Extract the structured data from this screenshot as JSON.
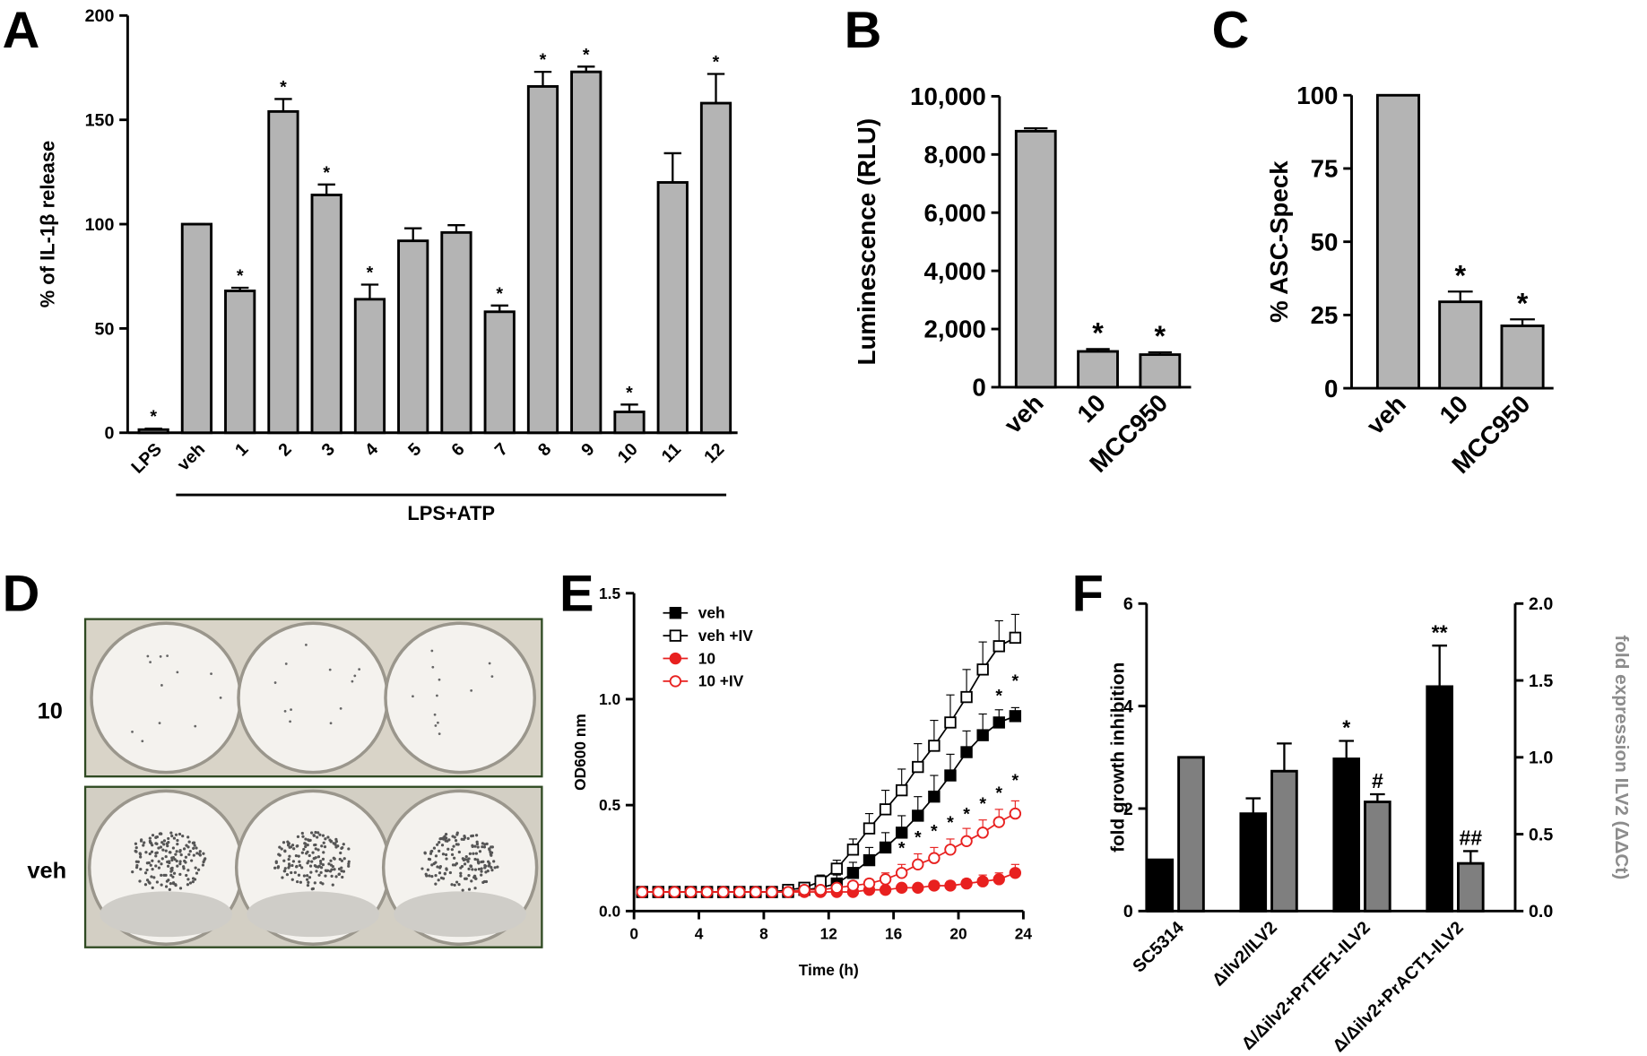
{
  "chart_data": [
    {
      "type": "bar",
      "panel_label": "A",
      "ylabel": "% of IL-1β release",
      "categories": [
        "LPS",
        "veh",
        "1",
        "2",
        "3",
        "4",
        "5",
        "6",
        "7",
        "8",
        "9",
        "10",
        "11",
        "12"
      ],
      "values": [
        1.5,
        100,
        68,
        154,
        114,
        64,
        92,
        96,
        58,
        166,
        173,
        10,
        120,
        158
      ],
      "errors": [
        0.5,
        0,
        1.5,
        6,
        5,
        7,
        6,
        3.5,
        3,
        7,
        2.5,
        3.5,
        14,
        14
      ],
      "significance": [
        "*",
        null,
        "*",
        "*",
        "*",
        "*",
        null,
        null,
        "*",
        "*",
        "*",
        "*",
        null,
        "*"
      ],
      "group_label": "LPS+ATP",
      "color": "#b4b4b4",
      "ylim": [
        0,
        200
      ],
      "yticks": [
        0,
        50,
        100,
        150,
        200
      ]
    },
    {
      "type": "bar",
      "panel_label": "B",
      "ylabel": "Luminescence (RLU)",
      "categories": [
        "veh",
        "10",
        "MCC950"
      ],
      "values": [
        8800,
        1230,
        1120
      ],
      "errors": [
        100,
        80,
        80
      ],
      "significance": [
        null,
        "*",
        "*"
      ],
      "color": "#b4b4b4",
      "ylim": [
        0,
        10000
      ],
      "yticks": [
        0,
        {
          "value": 2000,
          "label": "2,000"
        },
        {
          "value": 4000,
          "label": "4,000"
        },
        {
          "value": 6000,
          "label": "6,000"
        },
        {
          "value": 8000,
          "label": "8,000"
        },
        {
          "value": 10000,
          "label": "10,000"
        }
      ]
    },
    {
      "type": "bar",
      "panel_label": "C",
      "ylabel": "% ASC-Speck",
      "categories": [
        "veh",
        "10",
        "MCC950"
      ],
      "values": [
        100,
        29.5,
        21.3
      ],
      "errors": [
        0,
        3.5,
        2.2
      ],
      "significance": [
        null,
        "*",
        "*"
      ],
      "color": "#b4b4b4",
      "ylim": [
        0,
        100
      ],
      "yticks": [
        0,
        25,
        50,
        75,
        100
      ]
    },
    {
      "type": "line",
      "panel_label": "E",
      "xlabel": "Time (h)",
      "ylabel": "OD600 nm",
      "x": [
        0.5,
        1.5,
        2.5,
        3.5,
        4.5,
        5.5,
        6.5,
        7.5,
        8.5,
        9.5,
        10.5,
        11.5,
        12.5,
        13.5,
        14.5,
        15.5,
        16.5,
        17.5,
        18.5,
        19.5,
        20.5,
        21.5,
        22.5,
        23.5
      ],
      "series": [
        {
          "name": "veh",
          "color": "#000000",
          "marker": "square",
          "filled": true,
          "values": [
            0.09,
            0.09,
            0.09,
            0.09,
            0.09,
            0.09,
            0.09,
            0.09,
            0.09,
            0.09,
            0.1,
            0.11,
            0.13,
            0.18,
            0.24,
            0.3,
            0.37,
            0.45,
            0.54,
            0.64,
            0.75,
            0.83,
            0.89,
            0.92
          ],
          "errors": [
            0.01,
            0.01,
            0.01,
            0.01,
            0.01,
            0.01,
            0.01,
            0.01,
            0.01,
            0.01,
            0.02,
            0.03,
            0.04,
            0.05,
            0.06,
            0.07,
            0.08,
            0.09,
            0.1,
            0.1,
            0.1,
            0.1,
            0.06,
            0.04
          ]
        },
        {
          "name": "veh +IV",
          "color": "#000000",
          "marker": "square",
          "filled": false,
          "values": [
            0.09,
            0.09,
            0.09,
            0.09,
            0.09,
            0.09,
            0.09,
            0.09,
            0.09,
            0.1,
            0.11,
            0.14,
            0.2,
            0.29,
            0.39,
            0.48,
            0.57,
            0.68,
            0.78,
            0.89,
            1.01,
            1.14,
            1.25,
            1.29
          ],
          "errors": [
            0.01,
            0.01,
            0.01,
            0.01,
            0.01,
            0.01,
            0.01,
            0.01,
            0.01,
            0.01,
            0.02,
            0.03,
            0.04,
            0.05,
            0.07,
            0.09,
            0.1,
            0.11,
            0.12,
            0.13,
            0.13,
            0.13,
            0.12,
            0.11
          ]
        },
        {
          "name": "10",
          "color": "#e8201f",
          "marker": "circle",
          "filled": true,
          "values": [
            0.09,
            0.09,
            0.09,
            0.09,
            0.09,
            0.09,
            0.09,
            0.09,
            0.09,
            0.09,
            0.09,
            0.09,
            0.09,
            0.09,
            0.1,
            0.1,
            0.11,
            0.11,
            0.12,
            0.12,
            0.13,
            0.14,
            0.15,
            0.18
          ],
          "errors": [
            0.01,
            0.01,
            0.01,
            0.01,
            0.01,
            0.01,
            0.01,
            0.01,
            0.01,
            0.01,
            0.01,
            0.01,
            0.01,
            0.01,
            0.01,
            0.01,
            0.01,
            0.01,
            0.02,
            0.02,
            0.02,
            0.03,
            0.03,
            0.04
          ]
        },
        {
          "name": "10 +IV",
          "color": "#e8201f",
          "marker": "circle",
          "filled": false,
          "values": [
            0.09,
            0.09,
            0.09,
            0.09,
            0.09,
            0.09,
            0.09,
            0.09,
            0.09,
            0.09,
            0.1,
            0.1,
            0.11,
            0.12,
            0.13,
            0.15,
            0.18,
            0.22,
            0.25,
            0.29,
            0.33,
            0.37,
            0.42,
            0.46
          ],
          "errors": [
            0.01,
            0.01,
            0.01,
            0.01,
            0.01,
            0.01,
            0.01,
            0.01,
            0.01,
            0.01,
            0.01,
            0.01,
            0.01,
            0.02,
            0.02,
            0.03,
            0.04,
            0.05,
            0.05,
            0.05,
            0.06,
            0.06,
            0.06,
            0.06
          ]
        }
      ],
      "annotations": [
        {
          "text": "*",
          "x": 16.5,
          "y": 0.27
        },
        {
          "text": "*",
          "x": 17.5,
          "y": 0.32
        },
        {
          "text": "*",
          "x": 18.5,
          "y": 0.35
        },
        {
          "text": "*",
          "x": 19.5,
          "y": 0.39
        },
        {
          "text": "*",
          "x": 20.5,
          "y": 0.43
        },
        {
          "text": "*",
          "x": 21.5,
          "y": 0.48
        },
        {
          "text": "*",
          "x": 22.5,
          "y": 0.53
        },
        {
          "text": "*",
          "x": 23.5,
          "y": 0.59
        },
        {
          "text": "*",
          "x": 22.5,
          "y": 0.99
        },
        {
          "text": "*",
          "x": 23.5,
          "y": 1.06
        }
      ],
      "xlim": [
        0,
        24
      ],
      "xticks": [
        0,
        4,
        8,
        12,
        16,
        20,
        24
      ],
      "ylim": [
        0,
        1.5
      ],
      "yticks": [
        {
          "value": 0,
          "label": "0.0"
        },
        {
          "value": 0.5,
          "label": "0.5"
        },
        {
          "value": 1,
          "label": "1.0"
        },
        {
          "value": 1.5,
          "label": "1.5"
        }
      ]
    },
    {
      "type": "bar",
      "panel_label": "F",
      "ylabel": "fold growth inhibition",
      "y2label": "fold expression ILV2 (ΔΔCt)",
      "categories": [
        "SC5314",
        "Δilv2/ILV2",
        "Δ/Δilv2+PrTEF1-ILV2",
        "Δ/Δilv2+PrACT1-ILV2"
      ],
      "series": [
        {
          "color": "#000000",
          "values": [
            1.0,
            1.9,
            2.97,
            4.38
          ],
          "errors": [
            0,
            0.3,
            0.35,
            0.8
          ],
          "significance": [
            null,
            null,
            "*",
            "**"
          ]
        },
        {
          "color": "#7f7f7f",
          "axis": "y2",
          "values": [
            1.0,
            0.91,
            0.71,
            0.31
          ],
          "errors": [
            0,
            0.18,
            0.05,
            0.08
          ],
          "significance": [
            null,
            null,
            "#",
            "##"
          ]
        }
      ],
      "ylim": [
        0,
        6
      ],
      "yticks": [
        0,
        2,
        4,
        6
      ],
      "y2lim": [
        0,
        2
      ],
      "y2ticks": [
        {
          "value": 0,
          "label": "0.0"
        },
        {
          "value": 0.5,
          "label": "0.5"
        },
        {
          "value": 1,
          "label": "1.0"
        },
        {
          "value": 1.5,
          "label": "1.5"
        },
        {
          "value": 2,
          "label": "2.0"
        }
      ]
    }
  ],
  "photo_panel": {
    "panel_label": "D",
    "row_labels": [
      "10",
      "veh"
    ]
  }
}
